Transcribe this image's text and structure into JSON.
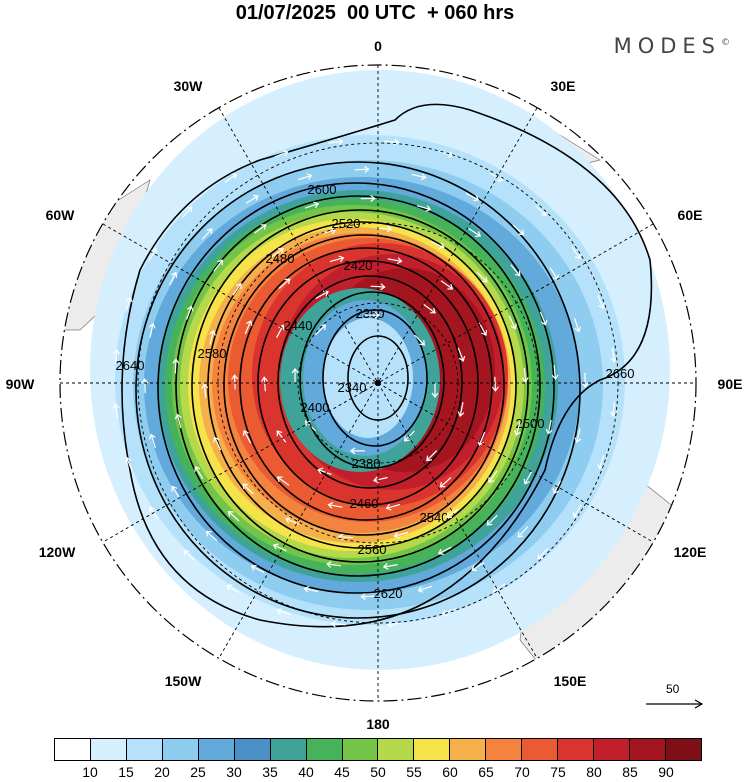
{
  "title": "01/07/2025  00 UTC  + 060 hrs",
  "brand": "MODES",
  "brand_mark": "©",
  "longitude_labels": [
    "0",
    "30E",
    "60E",
    "90E",
    "120E",
    "150E",
    "180",
    "150W",
    "120W",
    "90W",
    "60W",
    "30W"
  ],
  "contours": {
    "values": [
      "2340",
      "2360",
      "2380",
      "2400",
      "2420",
      "2440",
      "2460",
      "2480",
      "2500",
      "2520",
      "2540",
      "2560",
      "2580",
      "2600",
      "2620",
      "2640",
      "2660"
    ],
    "color": "#000000"
  },
  "wind_reference": {
    "label": "50",
    "icon": "arrow-right-icon"
  },
  "colorbar": {
    "colors": [
      "#ffffff",
      "#d6efff",
      "#b5e2fa",
      "#8fcdf0",
      "#62a9dc",
      "#4a8fc5",
      "#3fa39a",
      "#46b35a",
      "#73c548",
      "#b5d94a",
      "#f4e44a",
      "#f6b04b",
      "#f3833f",
      "#ea5b33",
      "#d9342e",
      "#c01f2b",
      "#a3151f",
      "#7e0f17"
    ],
    "labels": [
      "10",
      "15",
      "20",
      "25",
      "30",
      "35",
      "40",
      "45",
      "50",
      "55",
      "60",
      "65",
      "70",
      "75",
      "80",
      "85",
      "90"
    ]
  }
}
